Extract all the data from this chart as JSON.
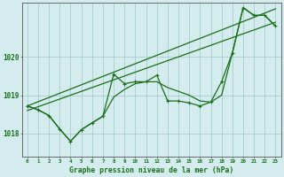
{
  "title": "Graphe pression niveau de la mer (hPa)",
  "bg_color": "#d4ecee",
  "grid_color": "#9ec8ca",
  "line_color": "#1a6e1a",
  "xlim": [
    -0.5,
    23.5
  ],
  "ylim": [
    1017.4,
    1021.4
  ],
  "yticks": [
    1018,
    1019,
    1020
  ],
  "xticks": [
    0,
    1,
    2,
    3,
    4,
    5,
    6,
    7,
    8,
    9,
    10,
    11,
    12,
    13,
    14,
    15,
    16,
    17,
    18,
    19,
    20,
    21,
    22,
    23
  ],
  "trend1": [
    1018.72,
    1018.83,
    1018.94,
    1019.05,
    1019.16,
    1019.27,
    1019.38,
    1019.49,
    1019.6,
    1019.71,
    1019.82,
    1019.93,
    1020.04,
    1020.15,
    1020.26,
    1020.37,
    1020.48,
    1020.59,
    1020.7,
    1020.81,
    1020.92,
    1021.03,
    1021.14,
    1021.25
  ],
  "trend2": [
    1018.6,
    1018.7,
    1018.8,
    1018.9,
    1019.0,
    1019.1,
    1019.2,
    1019.3,
    1019.4,
    1019.5,
    1019.6,
    1019.7,
    1019.8,
    1019.9,
    1020.0,
    1020.1,
    1020.2,
    1020.3,
    1020.4,
    1020.5,
    1020.6,
    1020.7,
    1020.8,
    1020.9
  ],
  "main_line": [
    1018.72,
    1018.62,
    1018.47,
    1018.12,
    1017.8,
    1018.1,
    1018.28,
    1018.45,
    1019.55,
    1019.3,
    1019.35,
    1019.35,
    1019.52,
    1018.85,
    1018.85,
    1018.8,
    1018.72,
    1018.82,
    1019.35,
    1020.1,
    1021.28,
    1021.08,
    1021.08,
    1020.8
  ],
  "line2": [
    1018.72,
    1018.62,
    1018.47,
    1018.12,
    1017.8,
    1018.1,
    1018.28,
    1018.45,
    1018.95,
    1019.15,
    1019.3,
    1019.35,
    1019.35,
    1019.2,
    1019.1,
    1019.0,
    1018.85,
    1018.82,
    1019.0,
    1020.1,
    1021.28,
    1021.08,
    1021.08,
    1020.8
  ]
}
